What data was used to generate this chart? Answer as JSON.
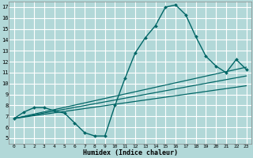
{
  "xlabel": "Humidex (Indice chaleur)",
  "xlim": [
    -0.5,
    23.5
  ],
  "ylim": [
    4.5,
    17.5
  ],
  "xticks": [
    0,
    1,
    2,
    3,
    4,
    5,
    6,
    7,
    8,
    9,
    10,
    11,
    12,
    13,
    14,
    15,
    16,
    17,
    18,
    19,
    20,
    21,
    22,
    23
  ],
  "yticks": [
    5,
    6,
    7,
    8,
    9,
    10,
    11,
    12,
    13,
    14,
    15,
    16,
    17
  ],
  "background_color": "#b2d8d8",
  "grid_color": "#ffffff",
  "line_color": "#006666",
  "lines": [
    {
      "x": [
        0,
        1,
        2,
        3,
        4,
        5,
        6,
        7,
        8,
        9,
        10,
        11,
        12,
        13,
        14,
        15,
        16,
        17,
        18,
        19,
        20,
        21,
        22,
        23
      ],
      "y": [
        6.8,
        7.4,
        7.8,
        7.8,
        7.5,
        7.3,
        6.4,
        5.5,
        5.2,
        5.2,
        8.0,
        10.5,
        12.8,
        14.2,
        15.3,
        17.0,
        17.2,
        16.3,
        14.3,
        12.5,
        11.6,
        11.0,
        12.2,
        11.3
      ],
      "marker": "D",
      "markersize": 2.0,
      "linewidth": 1.0,
      "has_marker": true
    },
    {
      "x": [
        0,
        23
      ],
      "y": [
        6.8,
        11.5
      ],
      "linewidth": 0.9,
      "has_marker": false
    },
    {
      "x": [
        0,
        23
      ],
      "y": [
        6.8,
        10.7
      ],
      "linewidth": 0.9,
      "has_marker": false
    },
    {
      "x": [
        0,
        23
      ],
      "y": [
        6.8,
        9.8
      ],
      "linewidth": 0.9,
      "has_marker": false
    }
  ]
}
